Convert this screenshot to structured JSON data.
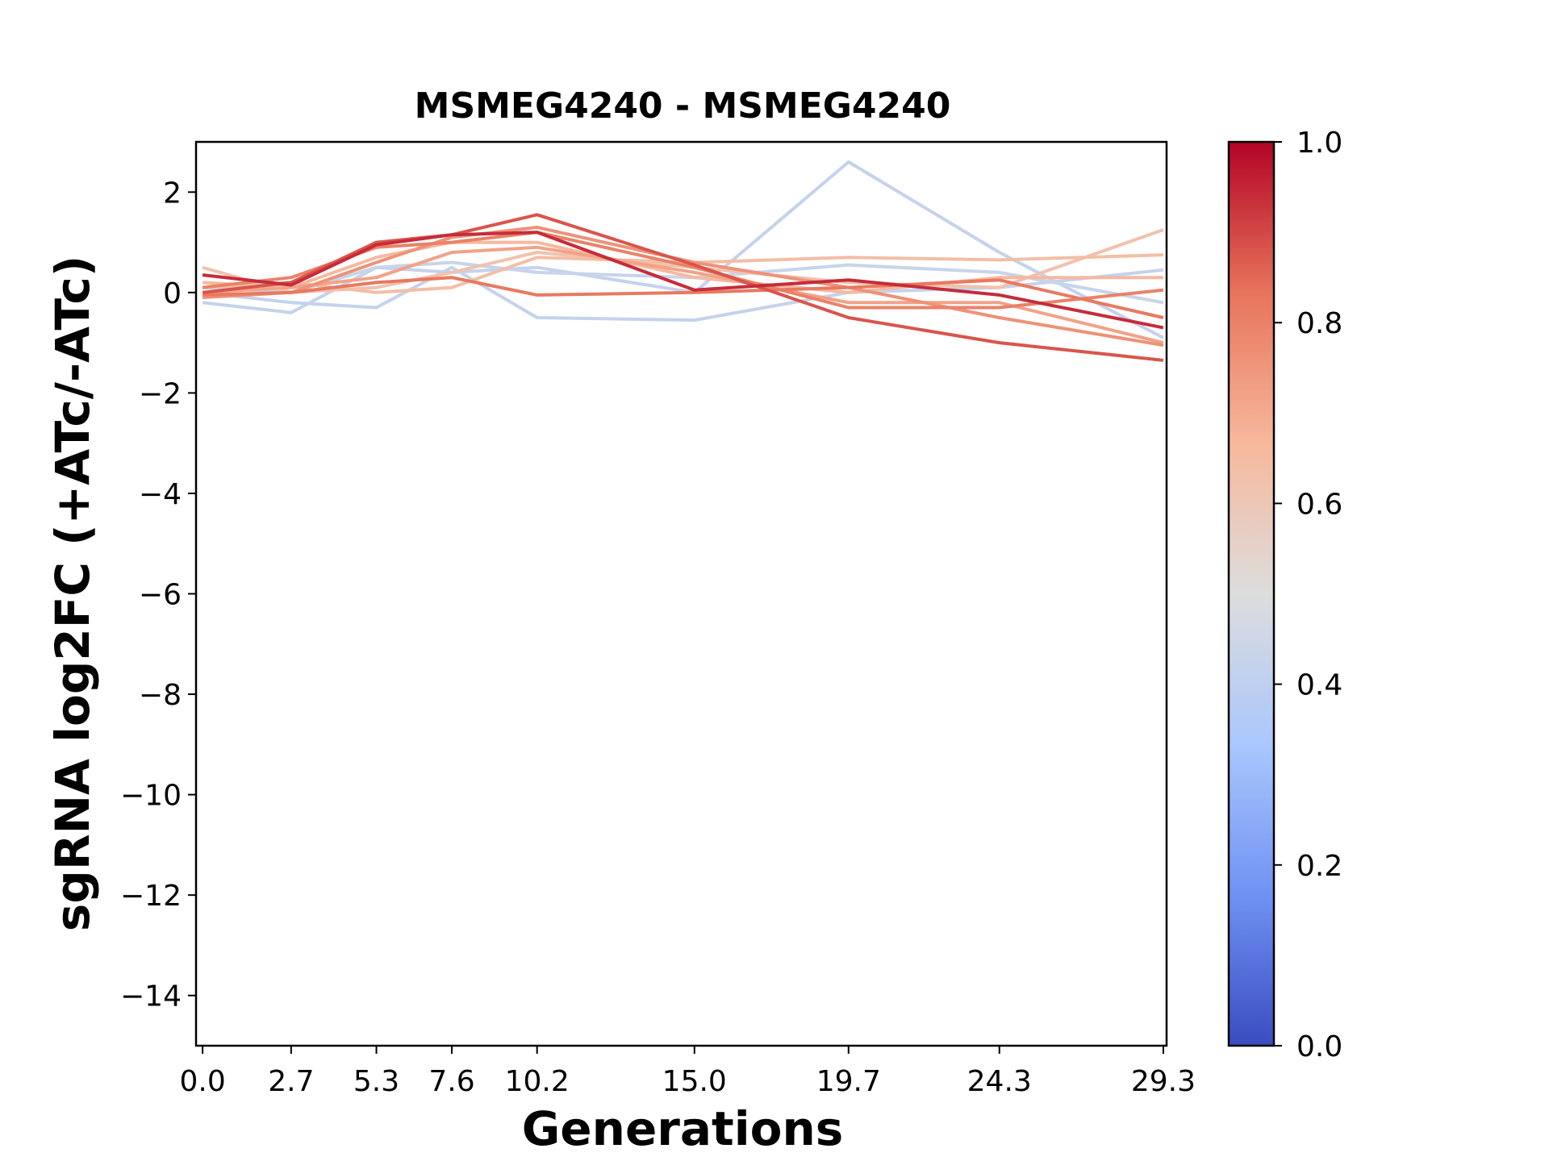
{
  "chart_data": {
    "type": "line",
    "title": "MSMEG4240 - MSMEG4240",
    "xlabel": "Generations",
    "ylabel": "sgRNA log2FC (+ATc/-ATc)",
    "x": [
      0.0,
      2.7,
      5.3,
      7.6,
      10.2,
      15.0,
      19.7,
      24.3,
      29.3
    ],
    "x_tick_labels": [
      "0.0",
      "2.7",
      "5.3",
      "7.6",
      "10.2",
      "15.0",
      "19.7",
      "24.3",
      "29.3"
    ],
    "xlim": [
      -0.2,
      29.4
    ],
    "ylim": [
      -15,
      3
    ],
    "y_ticks": [
      2,
      0,
      -2,
      -4,
      -6,
      -8,
      -10,
      -12,
      -14
    ],
    "y_tick_labels": [
      "2",
      "0",
      "−2",
      "−4",
      "−6",
      "−8",
      "−10",
      "−12",
      "−14"
    ],
    "grid": false,
    "colorbar": {
      "colormap": "coolwarm",
      "range": [
        0.0,
        1.0
      ],
      "ticks": [
        0.0,
        0.2,
        0.4,
        0.6,
        0.8,
        1.0
      ],
      "tick_labels": [
        "0.0",
        "0.2",
        "0.4",
        "0.6",
        "0.8",
        "1.0"
      ],
      "stops": [
        "#3b4cc0",
        "#6f92f3",
        "#aac7fd",
        "#dddddd",
        "#f7b89c",
        "#e7745b",
        "#b40426"
      ]
    },
    "series": [
      {
        "score": 0.42,
        "values": [
          -0.2,
          -0.4,
          0.5,
          0.4,
          0.5,
          0.0,
          2.6,
          0.8,
          -0.9
        ]
      },
      {
        "score": 0.42,
        "values": [
          0.0,
          -0.2,
          -0.3,
          0.5,
          -0.5,
          -0.55,
          0.0,
          0.1,
          0.45
        ]
      },
      {
        "score": 0.43,
        "values": [
          0.1,
          0.0,
          0.5,
          0.6,
          0.4,
          0.3,
          0.55,
          0.4,
          -0.2
        ]
      },
      {
        "score": 0.62,
        "values": [
          0.5,
          0.0,
          0.1,
          0.4,
          0.8,
          0.5,
          0.2,
          0.1,
          1.25
        ]
      },
      {
        "score": 0.64,
        "values": [
          0.1,
          0.2,
          0.0,
          0.1,
          0.7,
          0.6,
          0.7,
          0.65,
          0.75
        ]
      },
      {
        "score": 0.66,
        "values": [
          0.2,
          0.1,
          0.7,
          1.0,
          1.0,
          0.3,
          0.0,
          0.3,
          0.3
        ]
      },
      {
        "score": 0.72,
        "values": [
          0.0,
          0.1,
          0.3,
          0.8,
          0.9,
          0.4,
          -0.2,
          -0.2,
          -1.0
        ]
      },
      {
        "score": 0.76,
        "values": [
          -0.1,
          0.0,
          0.6,
          1.1,
          1.3,
          0.6,
          0.1,
          -0.5,
          -1.05
        ]
      },
      {
        "score": 0.8,
        "values": [
          0.1,
          0.3,
          0.9,
          1.0,
          1.2,
          0.5,
          -0.3,
          -0.3,
          0.05
        ]
      },
      {
        "score": 0.82,
        "values": [
          -0.05,
          0.0,
          0.2,
          0.3,
          -0.05,
          0.0,
          0.1,
          0.25,
          -0.5
        ]
      },
      {
        "score": 0.88,
        "values": [
          0.0,
          0.2,
          1.0,
          1.15,
          1.55,
          0.55,
          -0.5,
          -1.0,
          -1.35
        ]
      },
      {
        "score": 0.94,
        "values": [
          0.35,
          0.15,
          0.95,
          1.15,
          1.2,
          0.05,
          0.25,
          -0.05,
          -0.7
        ]
      }
    ]
  }
}
